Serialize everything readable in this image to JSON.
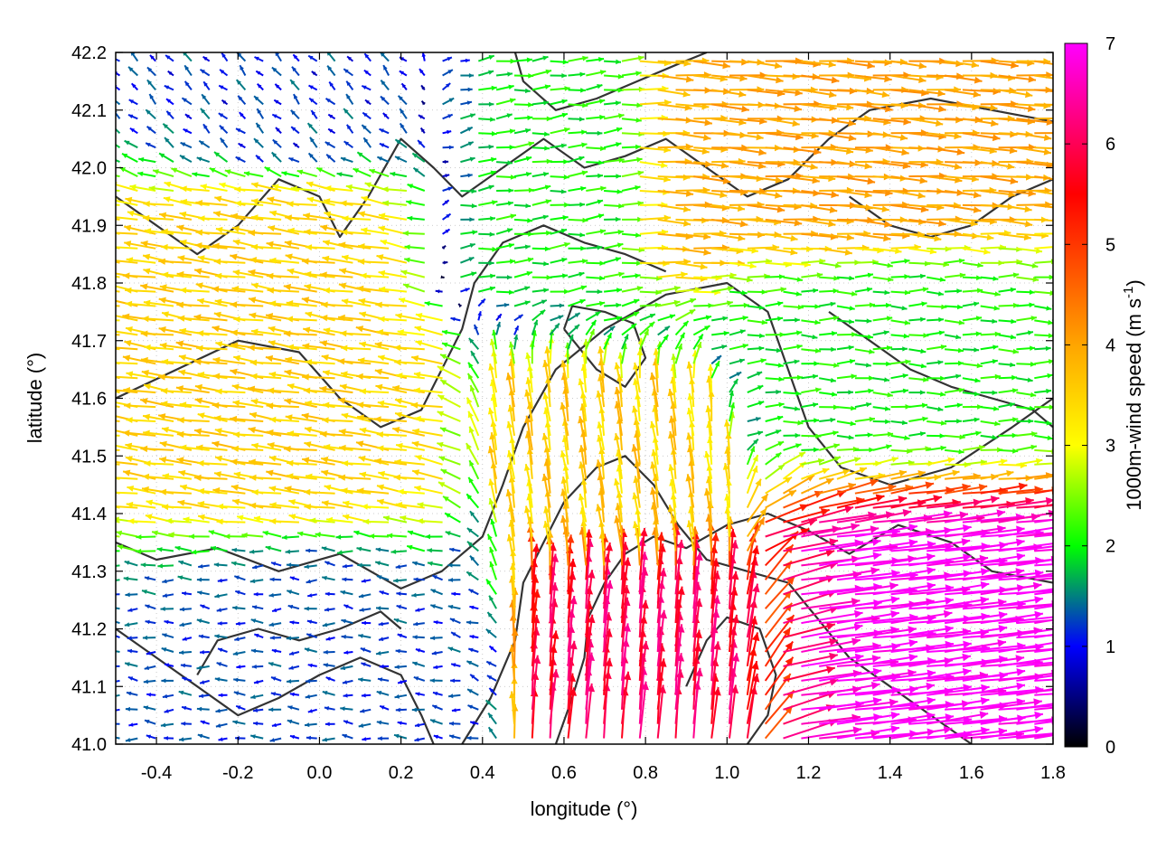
{
  "chart_data": {
    "type": "vector-field",
    "xlabel": "longitude (°)",
    "ylabel": "latitude (°)",
    "xlim": [
      -0.5,
      1.8
    ],
    "ylim": [
      41.0,
      42.2
    ],
    "xticks": [
      -0.4,
      -0.2,
      0.0,
      0.2,
      0.4,
      0.6,
      0.8,
      1.0,
      1.2,
      1.4,
      1.6,
      1.8
    ],
    "xtick_labels": [
      "-0.4",
      "-0.2",
      "0.0",
      "0.2",
      "0.4",
      "0.6",
      "0.8",
      "1.0",
      "1.2",
      "1.4",
      "1.6",
      "1.8"
    ],
    "yticks": [
      41.0,
      41.1,
      41.2,
      41.3,
      41.4,
      41.5,
      41.6,
      41.7,
      41.8,
      41.9,
      42.0,
      42.1,
      42.2
    ],
    "ytick_labels": [
      "41.0",
      "41.1",
      "41.2",
      "41.3",
      "41.4",
      "41.5",
      "41.6",
      "41.7",
      "41.8",
      "41.9",
      "42.0",
      "42.1",
      "42.2"
    ],
    "grid": true,
    "colorbar": {
      "label": "1000m-wind speed (m s",
      "label_sup": "-1",
      "label_end": ")",
      "range": [
        0,
        7
      ],
      "ticks": [
        0,
        1,
        2,
        3,
        4,
        5,
        6,
        7
      ],
      "tick_labels": [
        "0",
        "1",
        "2",
        "3",
        "4",
        "5",
        "6",
        "7"
      ],
      "colors": [
        "#000000",
        "#0000ff",
        "#00ff00",
        "#ffff00",
        "#ffa500",
        "#ff0000",
        "#ff00ff"
      ],
      "color_stops": [
        0,
        1,
        2,
        3,
        4,
        5.5,
        7
      ]
    },
    "wind_regimes": [
      {
        "lon": [
          -0.5,
          0.3
        ],
        "lat": [
          41.35,
          42.0
        ],
        "u": -3.5,
        "v": 0.5
      },
      {
        "lon": [
          -0.5,
          0.45
        ],
        "lat": [
          41.0,
          41.35
        ],
        "u": -1.2,
        "v": 0.05
      },
      {
        "lon": [
          -0.5,
          0.35
        ],
        "lat": [
          42.0,
          42.2
        ],
        "u": -0.8,
        "v": 0.8
      },
      {
        "lon": [
          0.3,
          0.75
        ],
        "lat": [
          41.8,
          42.2
        ],
        "u": 2.0,
        "v": 0.2
      },
      {
        "lon": [
          0.75,
          1.8
        ],
        "lat": [
          41.85,
          42.2
        ],
        "u": 4.0,
        "v": -0.3
      },
      {
        "lon": [
          1.0,
          1.8
        ],
        "lat": [
          41.55,
          41.85
        ],
        "u": 2.0,
        "v": 0.0
      },
      {
        "lon": [
          0.45,
          1.0
        ],
        "lat": [
          41.3,
          41.6
        ],
        "u": -0.5,
        "v": 3.5
      },
      {
        "lon": [
          1.1,
          1.8
        ],
        "lat": [
          41.0,
          41.35
        ],
        "u": 7.0,
        "v": 0.8
      },
      {
        "lon": [
          0.5,
          1.1
        ],
        "lat": [
          41.0,
          41.3
        ],
        "u": 0.5,
        "v": 6.0
      }
    ],
    "contours": [
      [
        [
          -0.5,
          41.35
        ],
        [
          -0.4,
          41.32
        ],
        [
          -0.25,
          41.34
        ],
        [
          -0.1,
          41.3
        ],
        [
          0.05,
          41.33
        ],
        [
          0.2,
          41.27
        ],
        [
          0.3,
          41.3
        ],
        [
          0.4,
          41.36
        ],
        [
          0.45,
          41.45
        ],
        [
          0.5,
          41.55
        ],
        [
          0.58,
          41.65
        ],
        [
          0.7,
          41.72
        ],
        [
          0.85,
          41.78
        ],
        [
          1.0,
          41.8
        ],
        [
          1.1,
          41.75
        ],
        [
          1.15,
          41.65
        ],
        [
          1.2,
          41.55
        ],
        [
          1.28,
          41.48
        ],
        [
          1.4,
          41.45
        ],
        [
          1.55,
          41.48
        ],
        [
          1.7,
          41.55
        ],
        [
          1.8,
          41.6
        ]
      ],
      [
        [
          -0.5,
          41.6
        ],
        [
          -0.35,
          41.65
        ],
        [
          -0.2,
          41.7
        ],
        [
          -0.05,
          41.68
        ],
        [
          0.05,
          41.6
        ],
        [
          0.15,
          41.55
        ],
        [
          0.25,
          41.58
        ],
        [
          0.3,
          41.65
        ],
        [
          0.35,
          41.72
        ],
        [
          0.38,
          41.8
        ],
        [
          0.45,
          41.87
        ],
        [
          0.55,
          41.9
        ],
        [
          0.65,
          41.87
        ],
        [
          0.75,
          41.85
        ],
        [
          0.85,
          41.82
        ]
      ],
      [
        [
          -0.5,
          41.95
        ],
        [
          -0.4,
          41.9
        ],
        [
          -0.3,
          41.85
        ],
        [
          -0.2,
          41.9
        ],
        [
          -0.1,
          41.98
        ],
        [
          0.0,
          41.95
        ],
        [
          0.05,
          41.88
        ],
        [
          0.12,
          41.95
        ],
        [
          0.2,
          42.05
        ],
        [
          0.28,
          42.0
        ],
        [
          0.35,
          41.95
        ],
        [
          0.45,
          42.0
        ],
        [
          0.55,
          42.05
        ],
        [
          0.65,
          42.0
        ],
        [
          0.75,
          42.02
        ],
        [
          0.85,
          42.05
        ],
        [
          0.95,
          42.0
        ],
        [
          1.05,
          41.95
        ],
        [
          1.15,
          41.98
        ],
        [
          1.25,
          42.05
        ],
        [
          1.35,
          42.1
        ],
        [
          1.5,
          42.12
        ],
        [
          1.65,
          42.1
        ],
        [
          1.8,
          42.08
        ]
      ],
      [
        [
          0.35,
          41.0
        ],
        [
          0.42,
          41.08
        ],
        [
          0.48,
          41.18
        ],
        [
          0.5,
          41.28
        ],
        [
          0.55,
          41.35
        ],
        [
          0.6,
          41.42
        ],
        [
          0.68,
          41.48
        ],
        [
          0.75,
          41.5
        ],
        [
          0.82,
          41.45
        ],
        [
          0.88,
          41.38
        ],
        [
          0.95,
          41.32
        ],
        [
          1.05,
          41.3
        ],
        [
          1.15,
          41.28
        ],
        [
          1.22,
          41.22
        ],
        [
          1.3,
          41.15
        ],
        [
          1.4,
          41.1
        ],
        [
          1.5,
          41.05
        ],
        [
          1.6,
          41.0
        ]
      ],
      [
        [
          0.58,
          41.0
        ],
        [
          0.62,
          41.08
        ],
        [
          0.65,
          41.15
        ],
        [
          0.66,
          41.22
        ],
        [
          0.7,
          41.28
        ],
        [
          0.75,
          41.33
        ],
        [
          0.82,
          41.36
        ],
        [
          0.9,
          41.34
        ],
        [
          1.0,
          41.38
        ],
        [
          1.1,
          41.4
        ],
        [
          1.2,
          41.37
        ],
        [
          1.3,
          41.33
        ],
        [
          1.42,
          41.38
        ],
        [
          1.55,
          41.35
        ],
        [
          1.65,
          41.3
        ],
        [
          1.8,
          41.28
        ]
      ],
      [
        [
          -0.5,
          41.2
        ],
        [
          -0.4,
          41.15
        ],
        [
          -0.3,
          41.1
        ],
        [
          -0.2,
          41.05
        ],
        [
          -0.1,
          41.08
        ],
        [
          0.0,
          41.12
        ],
        [
          0.1,
          41.15
        ],
        [
          0.2,
          41.12
        ],
        [
          0.25,
          41.05
        ],
        [
          0.28,
          41.0
        ]
      ],
      [
        [
          0.6,
          41.72
        ],
        [
          0.68,
          41.65
        ],
        [
          0.75,
          41.62
        ],
        [
          0.8,
          41.67
        ],
        [
          0.77,
          41.73
        ],
        [
          0.7,
          41.75
        ],
        [
          0.62,
          41.76
        ],
        [
          0.6,
          41.72
        ]
      ],
      [
        [
          0.48,
          42.2
        ],
        [
          0.5,
          42.15
        ],
        [
          0.58,
          42.1
        ],
        [
          0.68,
          42.12
        ],
        [
          0.78,
          42.15
        ],
        [
          0.88,
          42.18
        ],
        [
          0.95,
          42.2
        ]
      ],
      [
        [
          1.3,
          41.95
        ],
        [
          1.4,
          41.9
        ],
        [
          1.5,
          41.88
        ],
        [
          1.6,
          41.9
        ],
        [
          1.7,
          41.95
        ],
        [
          1.8,
          41.98
        ]
      ],
      [
        [
          -0.3,
          41.12
        ],
        [
          -0.25,
          41.18
        ],
        [
          -0.15,
          41.2
        ],
        [
          -0.05,
          41.18
        ],
        [
          0.05,
          41.2
        ],
        [
          0.15,
          41.23
        ],
        [
          0.2,
          41.2
        ]
      ],
      [
        [
          0.9,
          41.1
        ],
        [
          0.95,
          41.18
        ],
        [
          1.0,
          41.22
        ],
        [
          1.08,
          41.2
        ],
        [
          1.12,
          41.12
        ],
        [
          1.1,
          41.05
        ],
        [
          1.05,
          41.0
        ]
      ],
      [
        [
          1.25,
          41.75
        ],
        [
          1.35,
          41.7
        ],
        [
          1.45,
          41.65
        ],
        [
          1.55,
          41.62
        ],
        [
          1.65,
          41.6
        ],
        [
          1.75,
          41.58
        ],
        [
          1.8,
          41.55
        ]
      ]
    ]
  }
}
